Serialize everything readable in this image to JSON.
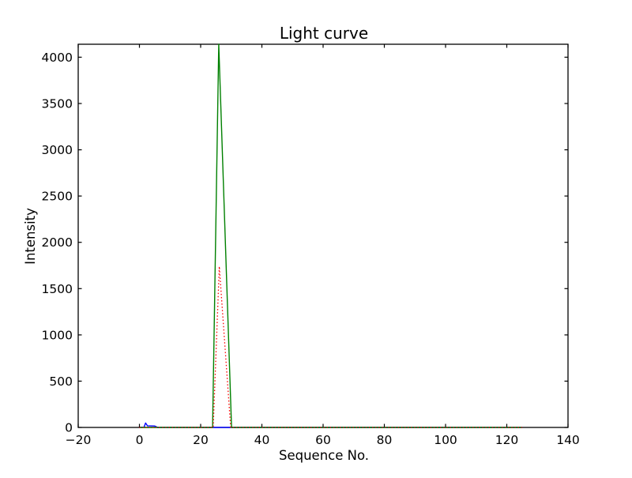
{
  "figure": {
    "background": "#ffffff",
    "axis_color": "#000000"
  },
  "chart_data": {
    "type": "line",
    "title": "Light curve",
    "xlabel": "Sequence No.",
    "ylabel": "Intensity",
    "xlim": [
      -20,
      140
    ],
    "ylim": [
      0,
      4140
    ],
    "xticks": [
      -20,
      0,
      20,
      40,
      60,
      80,
      100,
      120,
      140
    ],
    "xtick_labels": [
      "−20",
      "0",
      "20",
      "40",
      "60",
      "80",
      "100",
      "120",
      "140"
    ],
    "yticks": [
      0,
      500,
      1000,
      1500,
      2000,
      2500,
      3000,
      3500,
      4000
    ],
    "ytick_labels": [
      "0",
      "500",
      "1000",
      "1500",
      "2000",
      "2500",
      "3000",
      "3500",
      "4000"
    ],
    "grid": false,
    "legend": "none",
    "series": [
      {
        "name": "blue-solid",
        "color": "#0000ff",
        "linestyle": "solid",
        "points": [
          [
            0,
            0
          ],
          [
            1.5,
            3
          ],
          [
            2,
            48
          ],
          [
            2.6,
            18
          ],
          [
            5,
            15
          ],
          [
            6,
            0
          ],
          [
            20,
            0
          ],
          [
            40,
            0
          ],
          [
            60,
            0
          ],
          [
            80,
            0
          ],
          [
            100,
            0
          ],
          [
            125,
            0
          ]
        ]
      },
      {
        "name": "green-solid",
        "color": "#008000",
        "linestyle": "solid",
        "points": [
          [
            0,
            0
          ],
          [
            23.9,
            0
          ],
          [
            25.9,
            4140
          ],
          [
            30.1,
            0
          ],
          [
            40,
            0
          ],
          [
            60,
            0
          ],
          [
            80,
            0
          ],
          [
            100,
            0
          ],
          [
            125,
            0
          ]
        ]
      },
      {
        "name": "red-dotted",
        "color": "#ff0000",
        "linestyle": "dotted",
        "points": [
          [
            0,
            0
          ],
          [
            24.1,
            0
          ],
          [
            26.1,
            1740
          ],
          [
            29.8,
            0
          ],
          [
            40,
            0
          ],
          [
            60,
            0
          ],
          [
            80,
            0
          ],
          [
            100,
            0
          ],
          [
            125,
            0
          ]
        ]
      }
    ]
  }
}
